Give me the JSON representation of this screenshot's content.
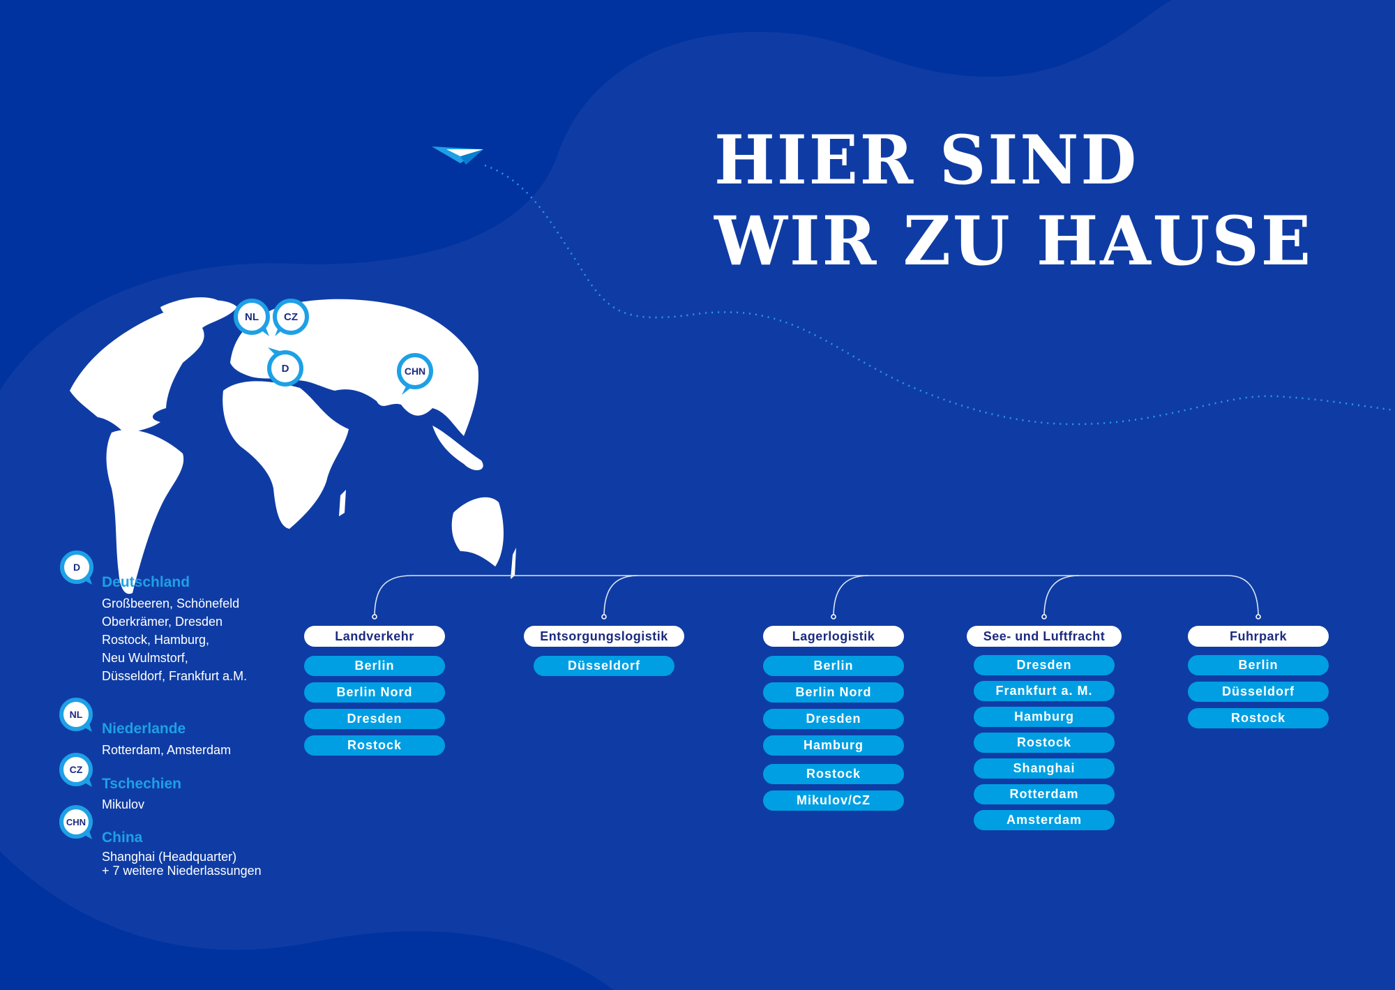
{
  "title": {
    "line1": "HIER SIND",
    "line2": "WIR ZU HAUSE"
  },
  "colors": {
    "background_dark": "#0033a0",
    "background_light": "#0f3ca4",
    "accent": "#009fe3",
    "heading_blue": "#1ea0e6",
    "label_dark": "#1b2a80"
  },
  "map_markers": [
    {
      "code": "NL"
    },
    {
      "code": "CZ"
    },
    {
      "code": "D"
    },
    {
      "code": "CHN"
    }
  ],
  "legend": [
    {
      "code": "D",
      "country": "Deutschland",
      "lines": [
        "Großbeeren, Schönefeld",
        "Oberkrämer, Dresden",
        "Rostock, Hamburg,",
        "Neu Wulmstorf,",
        "Düsseldorf, Frankfurt a.M."
      ]
    },
    {
      "code": "NL",
      "country": "Niederlande",
      "lines": [
        "Rotterdam, Amsterdam"
      ]
    },
    {
      "code": "CZ",
      "country": "Tschechien",
      "lines": [
        "Mikulov"
      ]
    },
    {
      "code": "CHN",
      "country": "China",
      "lines": [
        "Shanghai (Headquarter)",
        "+ 7 weitere Niederlassungen"
      ]
    }
  ],
  "services": [
    {
      "name": "Landverkehr",
      "locations": [
        "Berlin",
        "Berlin Nord",
        "Dresden",
        "Rostock"
      ]
    },
    {
      "name": "Entsorgungslogistik",
      "locations": [
        "Düsseldorf"
      ]
    },
    {
      "name": "Lagerlogistik",
      "locations": [
        "Berlin",
        "Berlin Nord",
        "Dresden",
        "Hamburg",
        "Rostock",
        "Mikulov/CZ"
      ]
    },
    {
      "name": "See- und Luftfracht",
      "locations": [
        "Dresden",
        "Frankfurt a. M.",
        "Hamburg",
        "Rostock",
        "Shanghai",
        "Rotterdam",
        "Amsterdam"
      ]
    },
    {
      "name": "Fuhrpark",
      "locations": [
        "Berlin",
        "Düsseldorf",
        "Rostock"
      ]
    }
  ]
}
